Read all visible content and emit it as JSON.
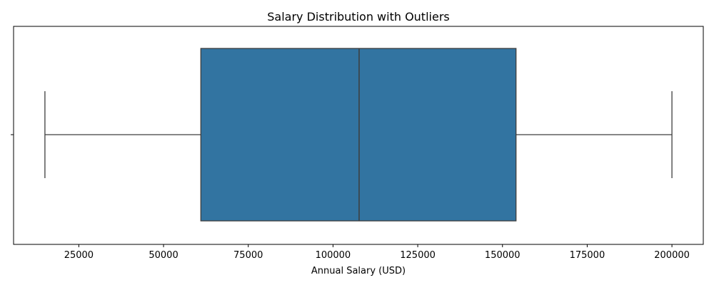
{
  "chart_data": {
    "type": "box",
    "title": "Salary Distribution with Outliers",
    "xlabel": "Annual Salary (USD)",
    "ylabel": "",
    "orientation": "horizontal",
    "xlim": [
      5750,
      209250
    ],
    "x_ticks": [
      25000,
      50000,
      75000,
      100000,
      125000,
      150000,
      175000,
      200000
    ],
    "x_tick_labels": [
      "25000",
      "50000",
      "75000",
      "100000",
      "125000",
      "150000",
      "175000",
      "200000"
    ],
    "grid": false,
    "legend": "none",
    "box": {
      "whisker_low": 15000,
      "q1": 61000,
      "median": 107700,
      "q3": 154000,
      "whisker_high": 200000,
      "fill": "#3274a1",
      "edge": "#3d3d3d"
    }
  }
}
